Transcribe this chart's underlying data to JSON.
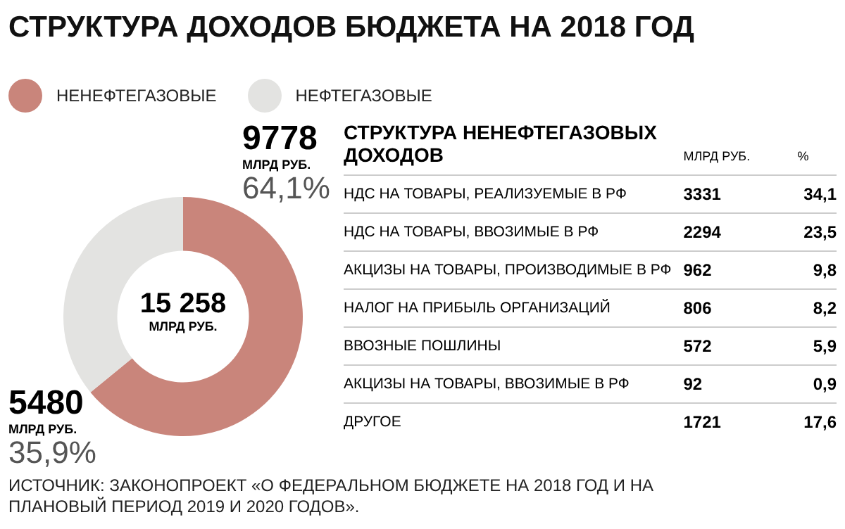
{
  "chart_data": [
    {
      "type": "donut",
      "title": "СТРУКТУРА ДОХОДОВ БЮДЖЕТА НА 2018 ГОД",
      "categories": [
        "НЕНЕФТЕГАЗОВЫЕ",
        "НЕФТЕГАЗОВЫЕ"
      ],
      "values": [
        9778,
        5480
      ],
      "colors": [
        "#c9857b",
        "#e3e3e1"
      ],
      "data_labels": true,
      "legend": "top right",
      "annotations": [
        "15 258",
        "МЛРД РУБ.",
        "МЛРД РУБ.",
        "64,1%",
        "МЛРД РУБ.",
        "35,9%",
        "ИСТОЧНИК: ЗАКОНОПРОЕКТ «О ФЕДЕРАЛЬНОМ БЮДЖЕТЕ НА 2018 ГОД И НА ПЛАНОВЫЙ ПЕРИОД 2019 И 2020 ГОДОВ»."
      ]
    },
    {
      "type": "other",
      "title": "СТРУКТУРА НЕНЕФТЕГАЗОВЫХ ДОХОДОВ",
      "annotations": [
        "МЛРД РУБ.",
        "%",
        "НДС НА ТОВАРЫ, РЕАЛИЗУЕМЫЕ В РФ",
        "3331",
        "34,1",
        "НДС НА ТОВАРЫ, ВВОЗИМЫЕ В РФ",
        "2294",
        "23,5",
        "АКЦИЗЫ НА ТОВАРЫ, ПРОИЗВОДИМЫЕ В РФ",
        "962",
        "9,8",
        "НАЛОГ НА ПРИБЫЛЬ ОРГАНИЗАЦИЙ",
        "806",
        "8,2",
        "ВВОЗНЫЕ ПОШЛИНЫ",
        "572",
        "5,9",
        "АКЦИЗЫ НА ТОВАРЫ, ВВОЗИМЫЕ В РФ",
        "92",
        "0,9",
        "ДРУГОЕ",
        "1721",
        "17,6"
      ]
    }
  ]
}
